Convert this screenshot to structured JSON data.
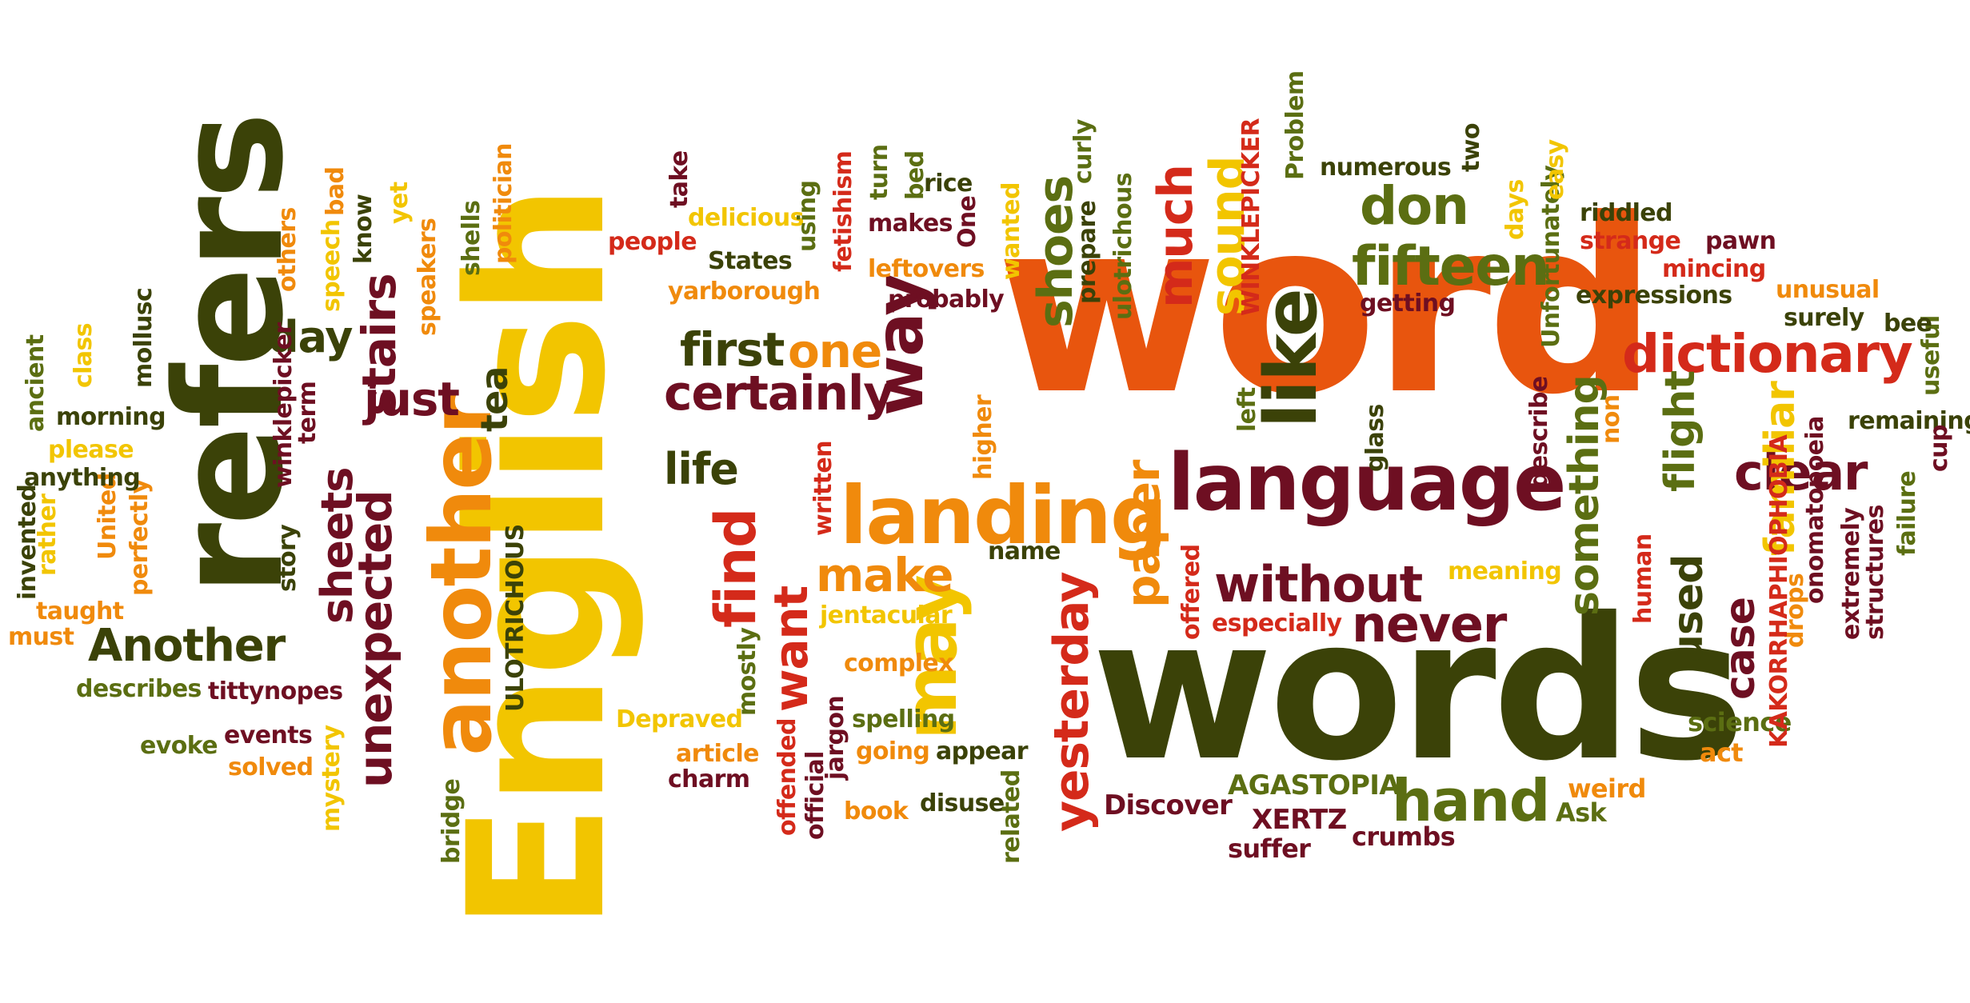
{
  "palette": {
    "yellow": "#f2c500",
    "orange": "#f08a0c",
    "deep_orange": "#e8550e",
    "red": "#d42a1a",
    "maroon": "#6e0f22",
    "olive": "#5b6e12",
    "dark_olive": "#3b4208"
  },
  "words": [
    {
      "text": "word",
      "color": "deep_orange"
    },
    {
      "text": "words",
      "color": "dark_olive"
    },
    {
      "text": "English",
      "color": "yellow"
    },
    {
      "text": "refers",
      "color": "dark_olive"
    },
    {
      "text": "another",
      "color": "orange"
    },
    {
      "text": "language",
      "color": "maroon"
    },
    {
      "text": "landing",
      "color": "orange"
    },
    {
      "text": "like",
      "color": "dark_olive"
    },
    {
      "text": "way",
      "color": "maroon"
    },
    {
      "text": "may",
      "color": "yellow"
    },
    {
      "text": "find",
      "color": "red"
    },
    {
      "text": "certainly",
      "color": "maroon"
    },
    {
      "text": "without",
      "color": "maroon"
    },
    {
      "text": "never",
      "color": "maroon"
    },
    {
      "text": "clear",
      "color": "maroon"
    },
    {
      "text": "dictionary",
      "color": "red"
    },
    {
      "text": "fifteen",
      "color": "olive"
    },
    {
      "text": "don",
      "color": "olive"
    },
    {
      "text": "much",
      "color": "red"
    },
    {
      "text": "sound",
      "color": "yellow"
    },
    {
      "text": "shoes",
      "color": "olive"
    },
    {
      "text": "hand",
      "color": "olive"
    },
    {
      "text": "yesterday",
      "color": "red"
    },
    {
      "text": "unexpected",
      "color": "maroon"
    },
    {
      "text": "stairs",
      "color": "maroon"
    },
    {
      "text": "just",
      "color": "maroon"
    },
    {
      "text": "sheets",
      "color": "maroon"
    },
    {
      "text": "Another",
      "color": "dark_olive"
    },
    {
      "text": "day",
      "color": "dark_olive"
    },
    {
      "text": "first",
      "color": "dark_olive"
    },
    {
      "text": "one",
      "color": "orange"
    },
    {
      "text": "life",
      "color": "dark_olive"
    },
    {
      "text": "make",
      "color": "orange"
    },
    {
      "text": "paper",
      "color": "orange"
    },
    {
      "text": "something",
      "color": "olive"
    },
    {
      "text": "flight",
      "color": "olive"
    },
    {
      "text": "used",
      "color": "dark_olive"
    },
    {
      "text": "case",
      "color": "maroon"
    },
    {
      "text": "familiar",
      "color": "yellow"
    },
    {
      "text": "want",
      "color": "red"
    },
    {
      "text": "tea",
      "color": "dark_olive"
    },
    {
      "text": "Discover",
      "color": "maroon"
    },
    {
      "text": "AGASTOPIA",
      "color": "olive"
    },
    {
      "text": "XERTZ",
      "color": "maroon"
    },
    {
      "text": "crumbs",
      "color": "maroon"
    },
    {
      "text": "suffer",
      "color": "maroon"
    },
    {
      "text": "weird",
      "color": "orange"
    },
    {
      "text": "Ask",
      "color": "olive"
    },
    {
      "text": "science",
      "color": "olive"
    },
    {
      "text": "act",
      "color": "orange"
    },
    {
      "text": "drops",
      "color": "orange"
    },
    {
      "text": "KAKORRHAPHIOPHOBIA",
      "color": "red"
    },
    {
      "text": "onomatopoeia",
      "color": "maroon"
    },
    {
      "text": "extremely",
      "color": "maroon"
    },
    {
      "text": "structures",
      "color": "maroon"
    },
    {
      "text": "failure",
      "color": "olive"
    },
    {
      "text": "remaining",
      "color": "dark_olive"
    },
    {
      "text": "useful",
      "color": "olive"
    },
    {
      "text": "cup",
      "color": "maroon"
    },
    {
      "text": "bee",
      "color": "dark_olive"
    },
    {
      "text": "surely",
      "color": "dark_olive"
    },
    {
      "text": "unusual",
      "color": "orange"
    },
    {
      "text": "expressions",
      "color": "dark_olive"
    },
    {
      "text": "mincing",
      "color": "red"
    },
    {
      "text": "pawn",
      "color": "maroon"
    },
    {
      "text": "strange",
      "color": "red"
    },
    {
      "text": "riddled",
      "color": "dark_olive"
    },
    {
      "text": "Unfortunately",
      "color": "olive"
    },
    {
      "text": "easy",
      "color": "yellow"
    },
    {
      "text": "days",
      "color": "yellow"
    },
    {
      "text": "two",
      "color": "dark_olive"
    },
    {
      "text": "numerous",
      "color": "dark_olive"
    },
    {
      "text": "Problem",
      "color": "olive"
    },
    {
      "text": "WINKLEPICKER",
      "color": "red"
    },
    {
      "text": "getting",
      "color": "maroon"
    },
    {
      "text": "left",
      "color": "olive"
    },
    {
      "text": "glass",
      "color": "dark_olive"
    },
    {
      "text": "describe",
      "color": "maroon"
    },
    {
      "text": "non",
      "color": "orange"
    },
    {
      "text": "human",
      "color": "red"
    },
    {
      "text": "meaning",
      "color": "yellow"
    },
    {
      "text": "especially",
      "color": "red"
    },
    {
      "text": "offered",
      "color": "red"
    },
    {
      "text": "name",
      "color": "dark_olive"
    },
    {
      "text": "higher",
      "color": "orange"
    },
    {
      "text": "written",
      "color": "red"
    },
    {
      "text": "jentacular",
      "color": "yellow"
    },
    {
      "text": "complex",
      "color": "orange"
    },
    {
      "text": "spelling",
      "color": "olive"
    },
    {
      "text": "going",
      "color": "orange"
    },
    {
      "text": "appear",
      "color": "dark_olive"
    },
    {
      "text": "book",
      "color": "orange"
    },
    {
      "text": "disuse",
      "color": "dark_olive"
    },
    {
      "text": "related",
      "color": "olive"
    },
    {
      "text": "jargon",
      "color": "maroon"
    },
    {
      "text": "official",
      "color": "maroon"
    },
    {
      "text": "offended",
      "color": "red"
    },
    {
      "text": "mostly",
      "color": "olive"
    },
    {
      "text": "Depraved",
      "color": "yellow"
    },
    {
      "text": "article",
      "color": "orange"
    },
    {
      "text": "charm",
      "color": "maroon"
    },
    {
      "text": "ULOTRICHOUS",
      "color": "dark_olive"
    },
    {
      "text": "mystery",
      "color": "yellow"
    },
    {
      "text": "bridge",
      "color": "olive"
    },
    {
      "text": "events",
      "color": "maroon"
    },
    {
      "text": "evoke",
      "color": "olive"
    },
    {
      "text": "solved",
      "color": "orange"
    },
    {
      "text": "tittynopes",
      "color": "maroon"
    },
    {
      "text": "describes",
      "color": "olive"
    },
    {
      "text": "must",
      "color": "orange"
    },
    {
      "text": "invented",
      "color": "dark_olive"
    },
    {
      "text": "rather",
      "color": "yellow"
    },
    {
      "text": "taught",
      "color": "orange"
    },
    {
      "text": "United",
      "color": "orange"
    },
    {
      "text": "perfectly",
      "color": "orange"
    },
    {
      "text": "anything",
      "color": "dark_olive"
    },
    {
      "text": "please",
      "color": "yellow"
    },
    {
      "text": "ancient",
      "color": "olive"
    },
    {
      "text": "class",
      "color": "yellow"
    },
    {
      "text": "morning",
      "color": "dark_olive"
    },
    {
      "text": "mollusc",
      "color": "dark_olive"
    },
    {
      "text": "winklepicker",
      "color": "maroon"
    },
    {
      "text": "story",
      "color": "dark_olive"
    },
    {
      "text": "term",
      "color": "maroon"
    },
    {
      "text": "others",
      "color": "orange"
    },
    {
      "text": "speech",
      "color": "yellow"
    },
    {
      "text": "bad",
      "color": "orange"
    },
    {
      "text": "know",
      "color": "dark_olive"
    },
    {
      "text": "yet",
      "color": "yellow"
    },
    {
      "text": "speakers",
      "color": "orange"
    },
    {
      "text": "shells",
      "color": "olive"
    },
    {
      "text": "politician",
      "color": "orange"
    },
    {
      "text": "take",
      "color": "maroon"
    },
    {
      "text": "delicious",
      "color": "yellow"
    },
    {
      "text": "people",
      "color": "red"
    },
    {
      "text": "States",
      "color": "dark_olive"
    },
    {
      "text": "yarborough",
      "color": "orange"
    },
    {
      "text": "using",
      "color": "olive"
    },
    {
      "text": "fetishism",
      "color": "red"
    },
    {
      "text": "turn",
      "color": "olive"
    },
    {
      "text": "makes",
      "color": "maroon"
    },
    {
      "text": "leftovers",
      "color": "orange"
    },
    {
      "text": "bed",
      "color": "olive"
    },
    {
      "text": "rice",
      "color": "dark_olive"
    },
    {
      "text": "One",
      "color": "maroon"
    },
    {
      "text": "wanted",
      "color": "yellow"
    },
    {
      "text": "probably",
      "color": "maroon"
    },
    {
      "text": "curly",
      "color": "olive"
    },
    {
      "text": "prepare",
      "color": "dark_olive"
    },
    {
      "text": "ulotrichous",
      "color": "olive"
    }
  ]
}
